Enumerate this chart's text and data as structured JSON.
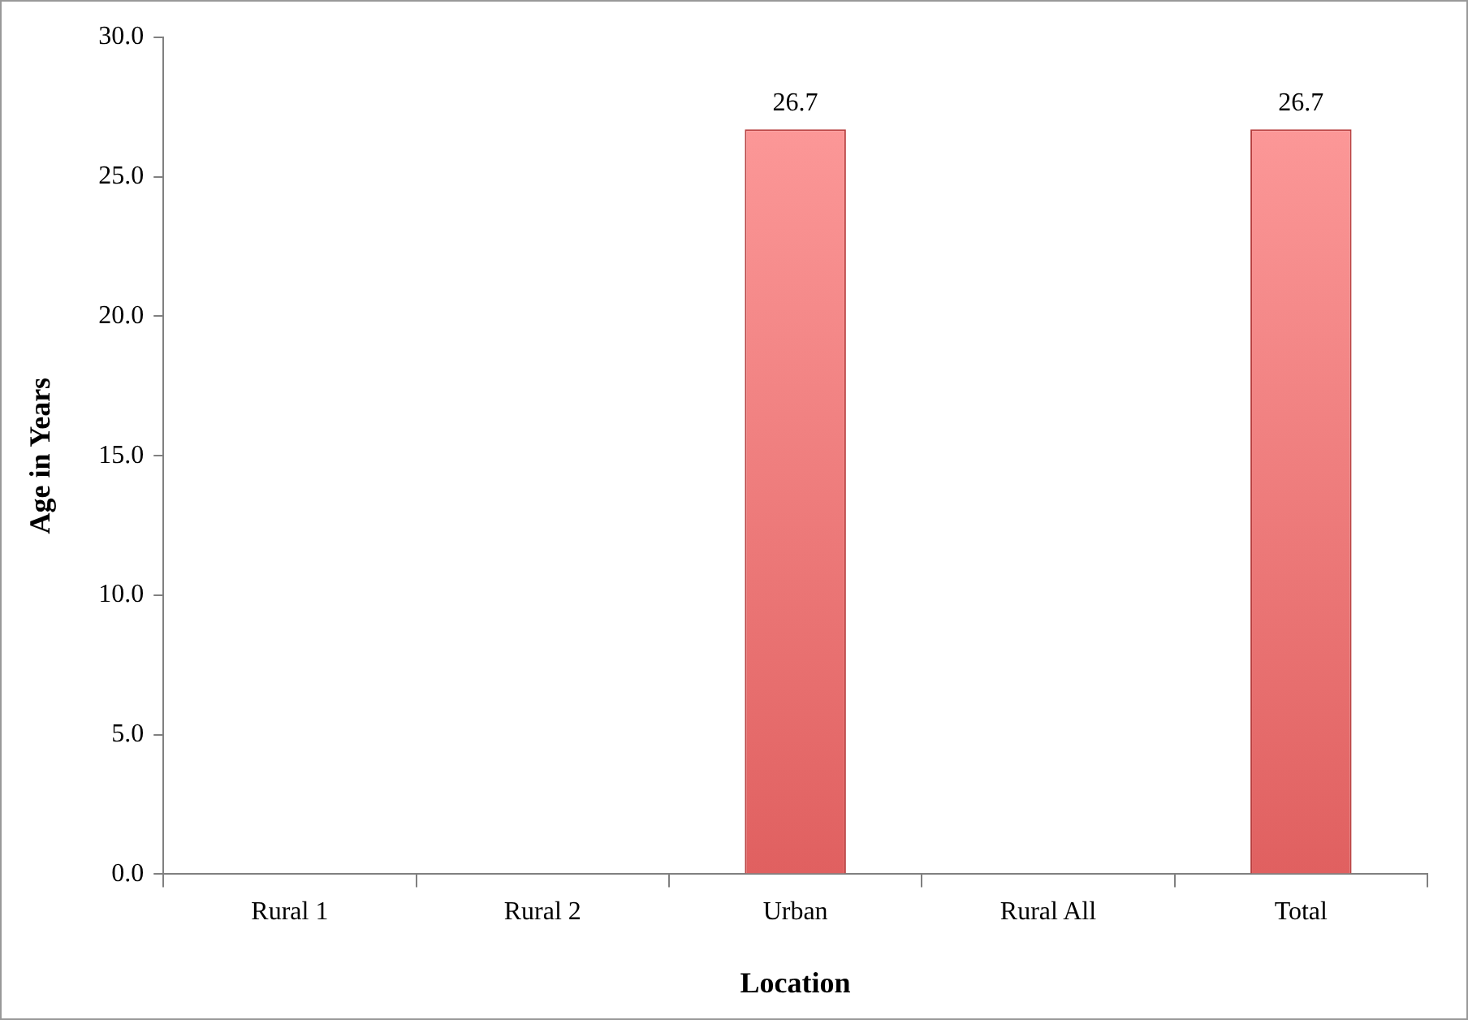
{
  "chart_data": {
    "type": "bar",
    "xlabel": "Location",
    "ylabel": "Age in Years",
    "categories": [
      "Rural 1",
      "Rural 2",
      "Urban",
      "Rural All",
      "Total"
    ],
    "values": [
      null,
      null,
      26.7,
      null,
      26.7
    ],
    "color": "#e06060",
    "ylim": [
      0,
      30
    ],
    "yticks": [
      {
        "value": 0,
        "label": "0.0"
      },
      {
        "value": 5,
        "label": "5.0"
      },
      {
        "value": 10,
        "label": "10.0"
      },
      {
        "value": 15,
        "label": "15.0"
      },
      {
        "value": 20,
        "label": "20.0"
      },
      {
        "value": 25,
        "label": "25.0"
      },
      {
        "value": 30,
        "label": "30.0"
      }
    ],
    "grid": false,
    "legend": false,
    "data_labels": true
  }
}
